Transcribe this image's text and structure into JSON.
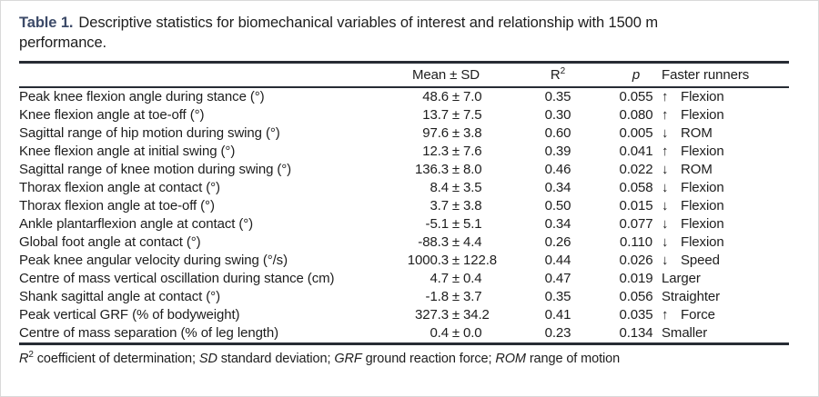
{
  "colors": {
    "caption_accent": "#3c4a68",
    "text": "#1d1d1d",
    "rule": "#272c34",
    "background": "#ffffff"
  },
  "caption": {
    "label": "Table 1.",
    "line1": "Descriptive statistics for biomechanical variables of interest and relationship with 1500 m",
    "line2": "performance."
  },
  "table": {
    "pm_symbol": "±",
    "headers": {
      "variable": "",
      "mean_sd": "Mean ± SD",
      "r2_base": "R",
      "r2_sup": "2",
      "p": "p",
      "faster": "Faster runners"
    },
    "rows": [
      {
        "variable": "Peak knee flexion angle during stance (°)",
        "mean": "48.6",
        "sd": "7.0",
        "r2": "0.35",
        "p": "0.055",
        "arrow": "↑",
        "faster": "Flexion"
      },
      {
        "variable": "Knee flexion angle at toe-off (°)",
        "mean": "13.7",
        "sd": "7.5",
        "r2": "0.30",
        "p": "0.080",
        "arrow": "↑",
        "faster": "Flexion"
      },
      {
        "variable": "Sagittal range of hip motion during swing (°)",
        "mean": "97.6",
        "sd": "3.8",
        "r2": "0.60",
        "p": "0.005",
        "arrow": "↓",
        "faster": "ROM"
      },
      {
        "variable": "Knee flexion angle at initial swing (°)",
        "mean": "12.3",
        "sd": "7.6",
        "r2": "0.39",
        "p": "0.041",
        "arrow": "↑",
        "faster": "Flexion"
      },
      {
        "variable": "Sagittal range of knee motion during swing (°)",
        "mean": "136.3",
        "sd": "8.0",
        "r2": "0.46",
        "p": "0.022",
        "arrow": "↓",
        "faster": "ROM"
      },
      {
        "variable": "Thorax flexion angle at contact (°)",
        "mean": "8.4",
        "sd": "3.5",
        "r2": "0.34",
        "p": "0.058",
        "arrow": "↓",
        "faster": "Flexion"
      },
      {
        "variable": "Thorax flexion angle at toe-off (°)",
        "mean": "3.7",
        "sd": "3.8",
        "r2": "0.50",
        "p": "0.015",
        "arrow": "↓",
        "faster": "Flexion"
      },
      {
        "variable": "Ankle plantarflexion angle at contact (°)",
        "mean": "-5.1",
        "sd": "5.1",
        "r2": "0.34",
        "p": "0.077",
        "arrow": "↓",
        "faster": "Flexion"
      },
      {
        "variable": "Global foot angle at contact (°)",
        "mean": "-88.3",
        "sd": "4.4",
        "r2": "0.26",
        "p": "0.110",
        "arrow": "↓",
        "faster": "Flexion"
      },
      {
        "variable": "Peak knee angular velocity during swing (°/s)",
        "mean": "1000.3",
        "sd": "122.8",
        "r2": "0.44",
        "p": "0.026",
        "arrow": "↓",
        "faster": "Speed"
      },
      {
        "variable": "Centre of mass vertical oscillation during stance (cm)",
        "mean": "4.7",
        "sd": "0.4",
        "r2": "0.47",
        "p": "0.019",
        "arrow": "",
        "faster": "Larger"
      },
      {
        "variable": "Shank sagittal angle at contact (°)",
        "mean": "-1.8",
        "sd": "3.7",
        "r2": "0.35",
        "p": "0.056",
        "arrow": "",
        "faster": "Straighter"
      },
      {
        "variable": "Peak vertical GRF (% of bodyweight)",
        "mean": "327.3",
        "sd": "34.2",
        "r2": "0.41",
        "p": "0.035",
        "arrow": "↑",
        "faster": "Force"
      },
      {
        "variable": "Centre of mass separation (% of leg length)",
        "mean": "0.4",
        "sd": "0.0",
        "r2": "0.23",
        "p": "0.134",
        "arrow": "",
        "faster": "Smaller"
      }
    ]
  },
  "footnote": {
    "r2_label": "R",
    "r2_sup": "2",
    "r2_rest": " coefficient of determination; ",
    "sd_label": "SD",
    "sd_rest": " standard deviation; ",
    "grf_label": "GRF",
    "grf_rest": " ground reaction force; ",
    "rom_label": "ROM",
    "rom_rest": " range of motion"
  }
}
